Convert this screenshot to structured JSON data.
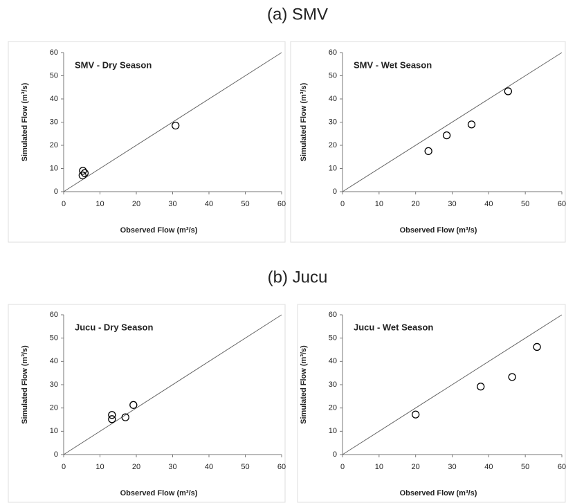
{
  "sections": [
    "(a) SMV",
    "(b) Jucu"
  ],
  "chart_data": [
    {
      "type": "scatter",
      "title": "SMV - Dry Season",
      "x_label": "Observed Flow (m³/s)",
      "y_label": "Simulated Flow (m³/s)",
      "x": [
        5.3,
        5.2,
        5.8,
        30.8
      ],
      "values": [
        9,
        7,
        8,
        28.5
      ],
      "color": "#000000",
      "xlim": [
        0,
        60
      ],
      "ylim": [
        0,
        60
      ],
      "xticks": [
        0,
        10,
        20,
        30,
        40,
        50,
        60
      ],
      "yticks": [
        0,
        10,
        20,
        30,
        40,
        50,
        60
      ]
    },
    {
      "type": "scatter",
      "title": "SMV - Wet Season",
      "x_label": "Observed Flow (m³/s)",
      "y_label": "Simulated Flow (m³/s)",
      "x": [
        23.5,
        28.5,
        35.3,
        45.3
      ],
      "values": [
        17.5,
        24.3,
        29,
        43.3
      ],
      "color": "#000000",
      "xlim": [
        0,
        60
      ],
      "ylim": [
        0,
        60
      ],
      "xticks": [
        0,
        10,
        20,
        30,
        40,
        50,
        60
      ],
      "yticks": [
        0,
        10,
        20,
        30,
        40,
        50,
        60
      ]
    },
    {
      "type": "scatter",
      "title": "Jucu - Dry Season",
      "x_label": "Observed Flow (m³/s)",
      "y_label": "Simulated Flow (m³/s)",
      "x": [
        13.3,
        13.3,
        17,
        19.2
      ],
      "values": [
        17,
        15.2,
        16,
        21.3
      ],
      "color": "#000000",
      "xlim": [
        0,
        60
      ],
      "ylim": [
        0,
        60
      ],
      "xticks": [
        0,
        10,
        20,
        30,
        40,
        50,
        60
      ],
      "yticks": [
        0,
        10,
        20,
        30,
        40,
        50,
        60
      ]
    },
    {
      "type": "scatter",
      "title": "Jucu - Wet Season",
      "x_label": "Observed Flow (m³/s)",
      "y_label": "Simulated Flow (m³/s)",
      "x": [
        20,
        37.8,
        46.4,
        53.2
      ],
      "values": [
        17.2,
        29.2,
        33.3,
        46.2
      ],
      "color": "#000000",
      "xlim": [
        0,
        60
      ],
      "ylim": [
        0,
        60
      ],
      "xticks": [
        0,
        10,
        20,
        30,
        40,
        50,
        60
      ],
      "yticks": [
        0,
        10,
        20,
        30,
        40,
        50,
        60
      ]
    }
  ]
}
